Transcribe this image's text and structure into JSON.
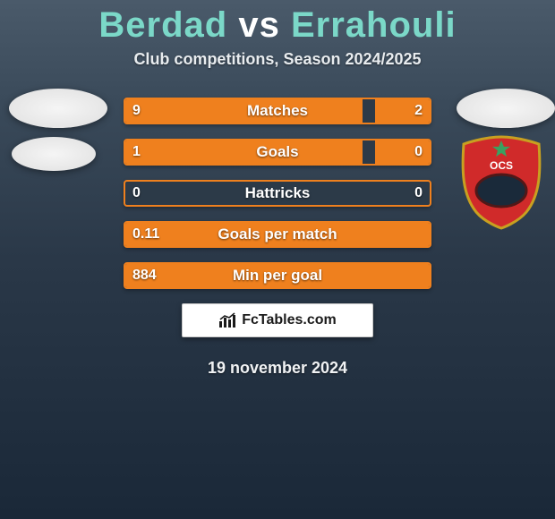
{
  "title": {
    "player1": "Berdad",
    "vs": "vs",
    "player2": "Errahouli",
    "fontsize": 40
  },
  "subtitle": {
    "text": "Club competitions, Season 2024/2025",
    "fontsize": 18
  },
  "date": {
    "text": "19 november 2024",
    "fontsize": 18
  },
  "footer": {
    "brand": "FcTables.com",
    "fontsize": 16
  },
  "colors": {
    "accent": "#ef801e",
    "bar_track": "#2c3a48",
    "title_name": "#7bd8c8",
    "background_top": "#4a5a6a",
    "background_bottom": "#1a2838",
    "text": "#ffffff",
    "badge_bg": "#ffffff",
    "badge_text": "#1a1a1a"
  },
  "club_right": {
    "name": "OCS",
    "shield_main": "#d02a2a",
    "shield_border": "#c8a020",
    "inner_oval": "#1a2a3a",
    "star_color": "#3aa060"
  },
  "stats": {
    "label_fontsize": 17,
    "value_fontsize": 16,
    "rows": [
      {
        "label": "Matches",
        "left_val": "9",
        "right_val": "2",
        "left_pct": 78,
        "right_pct": 18
      },
      {
        "label": "Goals",
        "left_val": "1",
        "right_val": "0",
        "left_pct": 78,
        "right_pct": 18
      },
      {
        "label": "Hattricks",
        "left_val": "0",
        "right_val": "0",
        "left_pct": 0,
        "right_pct": 0
      },
      {
        "label": "Goals per match",
        "left_val": "0.11",
        "right_val": "",
        "left_pct": 100,
        "right_pct": 0
      },
      {
        "label": "Min per goal",
        "left_val": "884",
        "right_val": "",
        "left_pct": 100,
        "right_pct": 0
      }
    ]
  }
}
